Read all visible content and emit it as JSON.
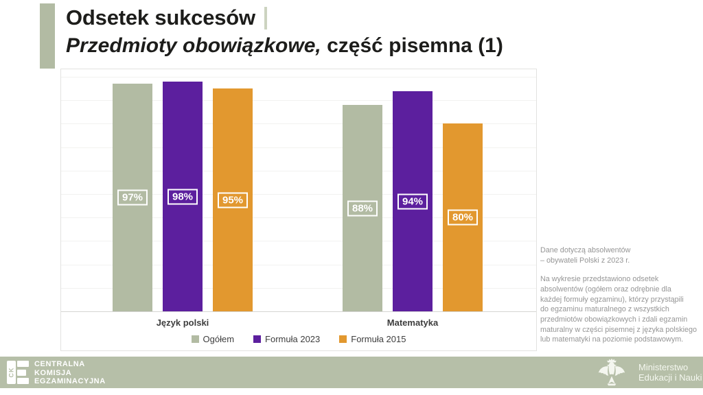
{
  "slide": {
    "title": "Odsetek sukcesów",
    "subtitle_italic": "Przedmioty obowiązkowe,",
    "subtitle_regular": " część pisemna (1)"
  },
  "chart_data": {
    "type": "bar",
    "title": "Odsetek sukcesów — przedmioty obowiązkowe, część pisemna",
    "categories": [
      "Język polski",
      "Matematyka"
    ],
    "series": [
      {
        "name": "Ogółem",
        "color": "#b2bba3",
        "values": [
          97,
          88
        ]
      },
      {
        "name": "Formuła 2023",
        "color": "#5c1f9e",
        "values": [
          98,
          94
        ]
      },
      {
        "name": "Formuła 2015",
        "color": "#e2982f",
        "values": [
          95,
          80
        ]
      }
    ],
    "value_suffix": "%",
    "ylim": [
      0,
      100
    ],
    "gridline_step_percent": 10,
    "grid": "horizontal",
    "legend_position": "bottom-center"
  },
  "notes": {
    "para1": "Dane dotyczą absolwentów\n– obywateli Polski z 2023 r.",
    "para2": "Na wykresie przedstawiono odsetek\nabsolwentów (ogółem oraz odrębnie dla\nkażdej formuły egzaminu), którzy przystąpili\ndo egzaminu maturalnego z wszystkich\nprzedmiotów obowiązkowych i zdali egzamin\nmaturalny w części pisemnej z języka polskiego\nlub matematyki na poziomie podstawowym."
  },
  "footer": {
    "background": "#b6bfa8",
    "cke_logo_text": "CK",
    "cke_name": "CENTRALNA\nKOMISJA\nEGZAMINACYJNA",
    "ministry": "Ministerstwo\nEdukacji i Nauki"
  }
}
